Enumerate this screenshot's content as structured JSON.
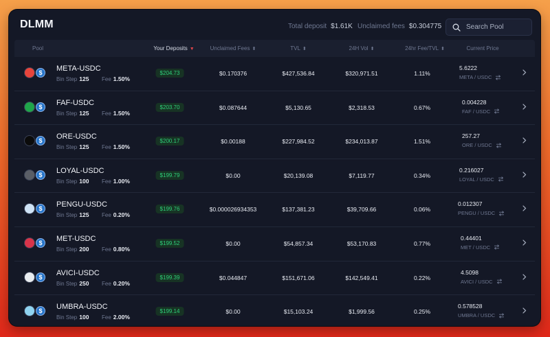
{
  "header": {
    "brand": "DLMM",
    "total_deposit_label": "Total deposit",
    "total_deposit_value": "$1.61K",
    "unclaimed_fees_label": "Unclaimed fees",
    "unclaimed_fees_value": "$0.304775",
    "search_placeholder": "Search Pool"
  },
  "columns": {
    "pool": "Pool",
    "your_deposits": "Your Deposits",
    "unclaimed_fees": "Unclaimed Fees",
    "tvl": "TVL",
    "vol_24h": "24H Vol",
    "fee_tvl_24h": "24hr Fee/TVL",
    "current_price": "Current Price"
  },
  "labels": {
    "bin_step": "Bin Step",
    "fee": "Fee"
  },
  "colors": {
    "accent_green": "#2ed07a",
    "sort_active": "#e0454a",
    "usdc_blue": "#2775ca"
  },
  "pools": [
    {
      "name": "META-USDC",
      "bin_step": "125",
      "fee": "1.50%",
      "deposit": "$204.73",
      "unclaimed": "$0.170376",
      "tvl": "$427,536.84",
      "vol": "$320,971.51",
      "fee_tvl": "1.11%",
      "price": "5.6222",
      "pair": "META / USDC",
      "icon": "meta-token-icon",
      "icon_color": "#e8453c"
    },
    {
      "name": "FAF-USDC",
      "bin_step": "125",
      "fee": "1.50%",
      "deposit": "$203.70",
      "unclaimed": "$0.087644",
      "tvl": "$5,130.65",
      "vol": "$2,318.53",
      "fee_tvl": "0.67%",
      "price": "0.004228",
      "pair": "FAF / USDC",
      "icon": "faf-token-icon",
      "icon_color": "#1fa64a"
    },
    {
      "name": "ORE-USDC",
      "bin_step": "125",
      "fee": "1.50%",
      "deposit": "$200.17",
      "unclaimed": "$0.00188",
      "tvl": "$227,984.52",
      "vol": "$234,013.87",
      "fee_tvl": "1.51%",
      "price": "257.27",
      "pair": "ORE / USDC",
      "icon": "ore-token-icon",
      "icon_color": "#0b0b0b"
    },
    {
      "name": "LOYAL-USDC",
      "bin_step": "100",
      "fee": "1.00%",
      "deposit": "$199.79",
      "unclaimed": "$0.00",
      "tvl": "$20,139.08",
      "vol": "$7,119.77",
      "fee_tvl": "0.34%",
      "price": "0.216027",
      "pair": "LOYAL / USDC",
      "icon": "loyal-token-icon",
      "icon_color": "#5a5e66"
    },
    {
      "name": "PENGU-USDC",
      "bin_step": "125",
      "fee": "0.20%",
      "deposit": "$199.76",
      "unclaimed": "$0.000026934353",
      "tvl": "$137,381.23",
      "vol": "$39,709.66",
      "fee_tvl": "0.06%",
      "price": "0.012307",
      "pair": "PENGU / USDC",
      "icon": "pengu-token-icon",
      "icon_color": "#cfe3f5"
    },
    {
      "name": "MET-USDC",
      "bin_step": "200",
      "fee": "0.80%",
      "deposit": "$199.52",
      "unclaimed": "$0.00",
      "tvl": "$54,857.34",
      "vol": "$53,170.83",
      "fee_tvl": "0.77%",
      "price": "0.44401",
      "pair": "MET / USDC",
      "icon": "met-token-icon",
      "icon_color": "#d8344a"
    },
    {
      "name": "AVICI-USDC",
      "bin_step": "250",
      "fee": "0.20%",
      "deposit": "$199.39",
      "unclaimed": "$0.044847",
      "tvl": "$151,671.06",
      "vol": "$142,549.41",
      "fee_tvl": "0.22%",
      "price": "4.5098",
      "pair": "AVICI / USDC",
      "icon": "avici-token-icon",
      "icon_color": "#e9ecef"
    },
    {
      "name": "UMBRA-USDC",
      "bin_step": "100",
      "fee": "2.00%",
      "deposit": "$199.14",
      "unclaimed": "$0.00",
      "tvl": "$15,103.24",
      "vol": "$1,999.56",
      "fee_tvl": "0.25%",
      "price": "0.578528",
      "pair": "UMBRA / USDC",
      "icon": "umbra-token-icon",
      "icon_color": "#8fd3f0"
    }
  ]
}
